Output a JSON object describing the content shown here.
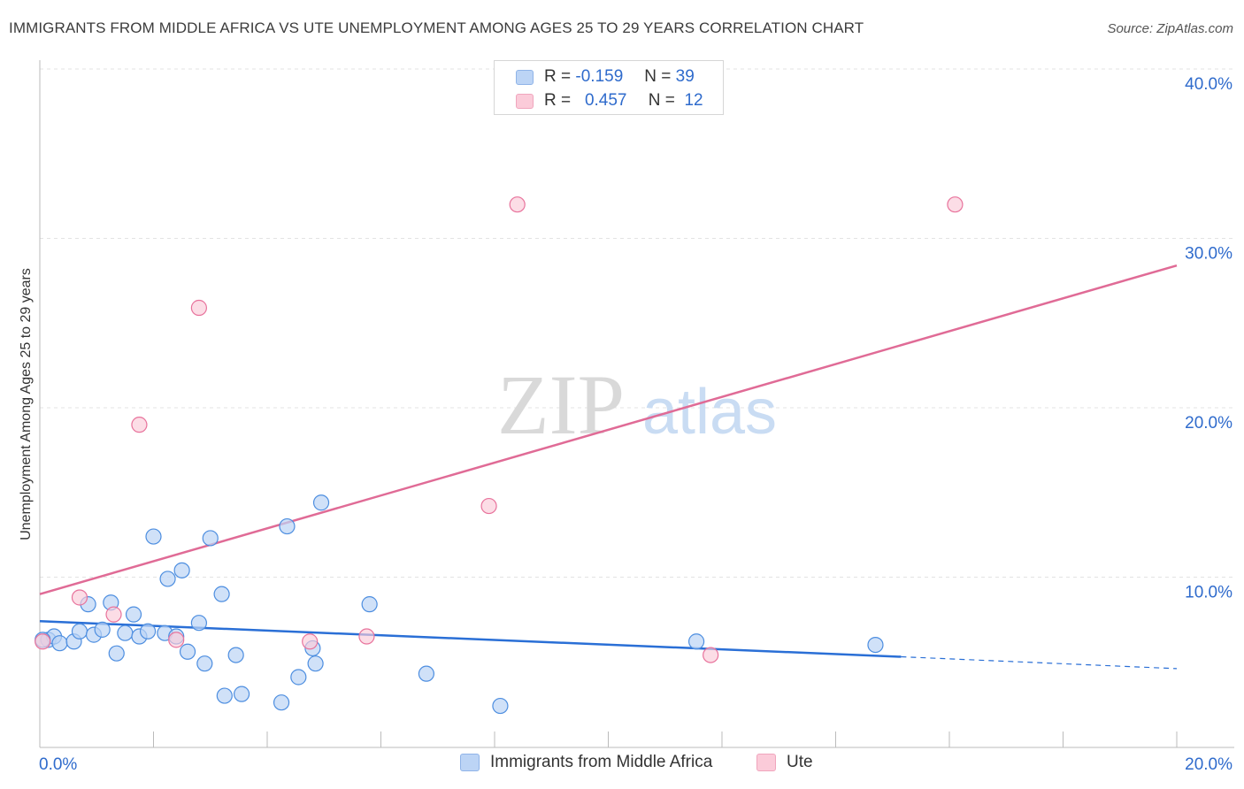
{
  "title": "IMMIGRANTS FROM MIDDLE AFRICA VS UTE UNEMPLOYMENT AMONG AGES 25 TO 29 YEARS CORRELATION CHART",
  "source": "Source: ZipAtlas.com",
  "watermark": {
    "zip": "ZIP",
    "atlas": "atlas"
  },
  "legend": {
    "r_label": "R =",
    "n_label": "N =",
    "rows": [
      {
        "series": "Immigrants from Middle Africa",
        "r": "-0.159",
        "n": "39"
      },
      {
        "series": "Ute",
        "r": "0.457",
        "n": "12"
      }
    ]
  },
  "chart_data": {
    "type": "scatter",
    "title": "IMMIGRANTS FROM MIDDLE AFRICA VS UTE UNEMPLOYMENT AMONG AGES 25 TO 29 YEARS CORRELATION CHART",
    "xlabel": "",
    "ylabel": "Unemployment Among Ages 25 to 29 years",
    "xlim": [
      0,
      20
    ],
    "ylim": [
      0,
      40
    ],
    "x_tick_labels": [
      "0.0%",
      "20.0%"
    ],
    "y_tick_labels": [
      "10.0%",
      "20.0%",
      "30.0%",
      "40.0%"
    ],
    "y_ticks": [
      10,
      20,
      30,
      40
    ],
    "colors": {
      "blue": "#4d8ee0",
      "blue_fill": "#bcd4f5",
      "pink": "#e8739c",
      "pink_fill": "#fbcbd9",
      "axis_text": "#2f6bcc"
    },
    "series": [
      {
        "name": "Immigrants from Middle Africa",
        "color": "#4d8ee0",
        "points": [
          [
            0.15,
            6.3
          ],
          [
            0.25,
            6.5
          ],
          [
            0.35,
            6.1
          ],
          [
            0.6,
            6.2
          ],
          [
            0.7,
            6.8
          ],
          [
            0.85,
            8.4
          ],
          [
            0.95,
            6.6
          ],
          [
            1.1,
            6.9
          ],
          [
            1.25,
            8.5
          ],
          [
            1.35,
            5.5
          ],
          [
            1.5,
            6.7
          ],
          [
            1.65,
            7.8
          ],
          [
            1.75,
            6.5
          ],
          [
            1.9,
            6.8
          ],
          [
            2.0,
            12.4
          ],
          [
            2.2,
            6.7
          ],
          [
            2.25,
            9.9
          ],
          [
            2.4,
            6.5
          ],
          [
            2.5,
            10.4
          ],
          [
            2.6,
            5.6
          ],
          [
            2.8,
            7.3
          ],
          [
            2.9,
            4.9
          ],
          [
            3.0,
            12.3
          ],
          [
            3.2,
            9.0
          ],
          [
            3.25,
            3.0
          ],
          [
            3.45,
            5.4
          ],
          [
            3.55,
            3.1
          ],
          [
            4.25,
            2.6
          ],
          [
            4.35,
            13.0
          ],
          [
            4.55,
            4.1
          ],
          [
            4.8,
            5.8
          ],
          [
            4.85,
            4.9
          ],
          [
            4.95,
            14.4
          ],
          [
            5.8,
            8.4
          ],
          [
            6.8,
            4.3
          ],
          [
            8.1,
            2.4
          ],
          [
            11.55,
            6.2
          ],
          [
            14.7,
            6.0
          ],
          [
            0.05,
            6.3
          ]
        ],
        "trend": {
          "x": [
            0,
            15.15
          ],
          "y": [
            7.4,
            5.3
          ],
          "dashed_to": [
            20,
            4.6
          ]
        }
      },
      {
        "name": "Ute",
        "color": "#e8739c",
        "points": [
          [
            0.05,
            6.2
          ],
          [
            0.7,
            8.8
          ],
          [
            1.3,
            7.8
          ],
          [
            1.75,
            19.0
          ],
          [
            2.4,
            6.3
          ],
          [
            2.8,
            25.9
          ],
          [
            4.75,
            6.2
          ],
          [
            5.75,
            6.5
          ],
          [
            7.9,
            14.2
          ],
          [
            8.4,
            32.0
          ],
          [
            11.8,
            5.4
          ],
          [
            16.1,
            32.0
          ]
        ],
        "trend": {
          "x": [
            0,
            20
          ],
          "y": [
            9.0,
            28.4
          ]
        }
      }
    ]
  }
}
